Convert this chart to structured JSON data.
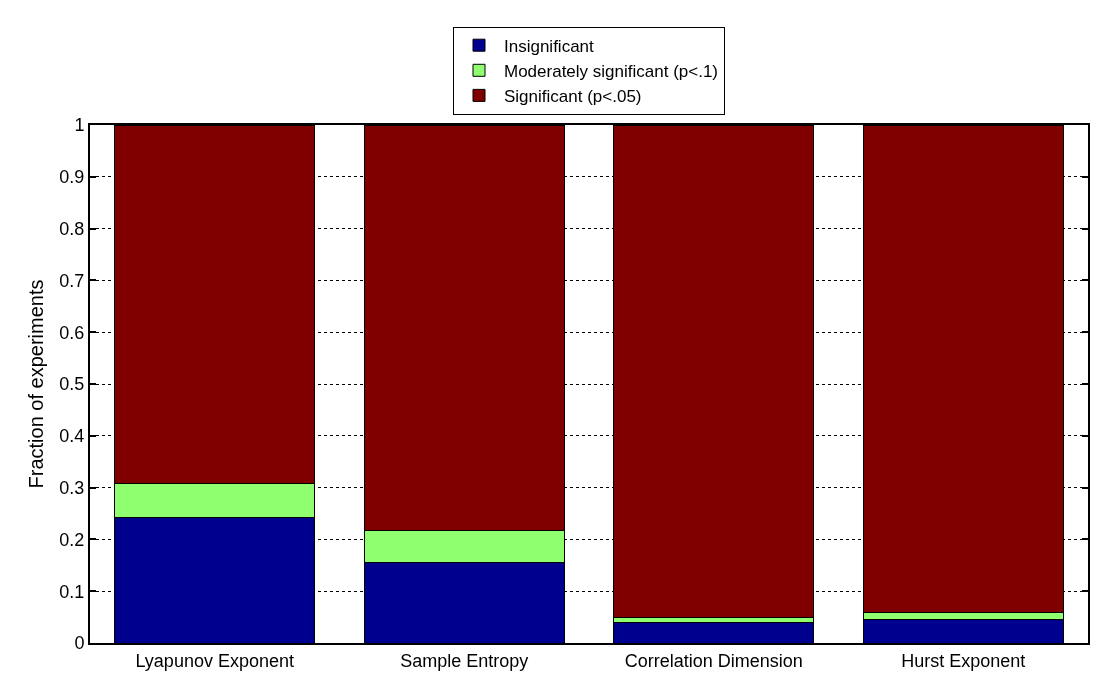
{
  "chart_data": {
    "type": "bar",
    "stacked": true,
    "ylabel": "Fraction of experiments",
    "categories": [
      "Lyapunov Exponent",
      "Sample Entropy",
      "Correlation Dimension",
      "Hurst Exponent"
    ],
    "series": [
      {
        "name": "Insignificant",
        "color": "#00008f",
        "values": [
          0.243,
          0.155,
          0.04,
          0.045
        ]
      },
      {
        "name": "Moderately significant (p<.1)",
        "color": "#8fff6f",
        "values": [
          0.064,
          0.062,
          0.009,
          0.014
        ]
      },
      {
        "name": "Significant (p<.05)",
        "color": "#800000",
        "values": [
          0.693,
          0.783,
          0.951,
          0.941
        ]
      }
    ],
    "ylim": [
      0,
      1
    ],
    "yticks": [
      0,
      0.1,
      0.2,
      0.3,
      0.4,
      0.5,
      0.6,
      0.7,
      0.8,
      0.9,
      1
    ],
    "grid": "y",
    "legend": "top"
  }
}
